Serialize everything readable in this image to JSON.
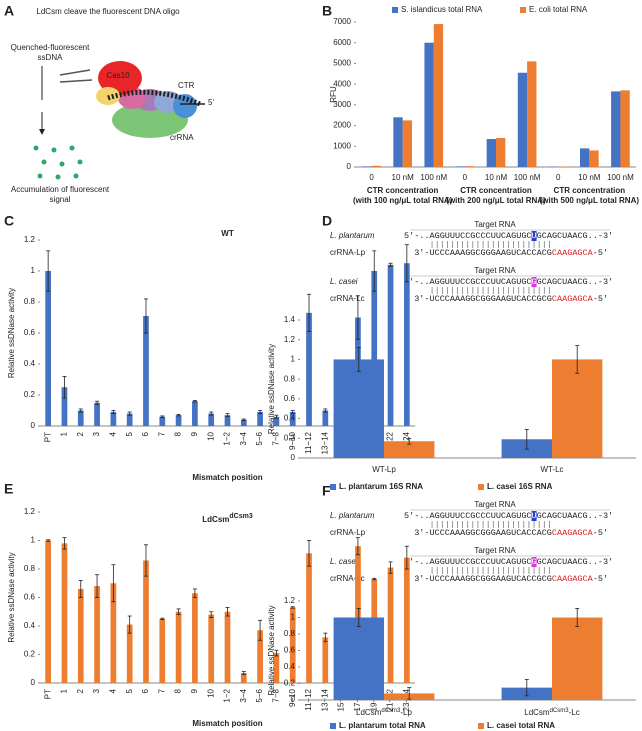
{
  "panel_labels": [
    "A",
    "B",
    "C",
    "D",
    "E",
    "F"
  ],
  "diagram_a": {
    "title": "LdCsm cleave the fluorescent DNA oligo",
    "probe": [
      "Quenched-fluorescent",
      "ssDNA"
    ],
    "cas10": "Cas10",
    "ctr": "CTR",
    "end": "5'",
    "crrna": "crRNA",
    "signal": [
      "Accumulation of fluorescent",
      "signal"
    ]
  },
  "sequences_d": [
    {
      "header": "Target RNA",
      "target_name": "L. plantarum",
      "target": [
        "5'-..AGGUUUCCGCCCUUCAGUGC",
        "U",
        "GCAGCUAACG..-3'"
      ],
      "cr_name": "crRNA-Lp",
      "cr": [
        "3'-UCCCAAAGGCGGGAAGUCACCACG",
        "CAAGAGCA",
        "-5'"
      ]
    },
    {
      "header": "Target RNA",
      "target_name": "L. casei",
      "target": [
        "5'-..AGGUUUCCGCCCUUCAGUGC",
        "G",
        "GCAGCUAACG..-3'"
      ],
      "cr_name": "crRNA-Lc",
      "cr": [
        "3'-UCCCAAAGGCGGGAAGUCACCGCG",
        "CAAGAGCA",
        "-5'"
      ]
    }
  ],
  "sequences_f": [
    {
      "header": "Target RNA",
      "target_name": "L. plantarum",
      "target": [
        "5'-..AGGUUUCCGCCCUUCAGUGC",
        "U",
        "GCAGCUAACG..-3'"
      ],
      "cr_name": "crRNA-Lp",
      "cr": [
        "3'-UCCCAAAGGCGGGAAGUCACCACG",
        "CAAGAGCA",
        "-5'"
      ]
    },
    {
      "header": "Target RNA",
      "target_name": "L. casei",
      "target": [
        "5'-..AGGUUUCCGCCCUUCAGUGC",
        "G",
        "GCAGCUAACG..-3'"
      ],
      "cr_name": "crRNA-Lc",
      "cr": [
        "3'-UCCCAAAGGCGGGAAGUCACCGCG",
        "CAAGAGCA",
        "-5'"
      ]
    }
  ],
  "chart_data": [
    {
      "type": "bar",
      "ylabel": "RFU",
      "categories": [
        "0",
        "10 nM",
        "100 nM",
        "0",
        "10 nM",
        "100 nM",
        "0",
        "10 nM",
        "100 nM"
      ],
      "group_labels": [
        [
          "CTR concentration",
          "(with 100 ng/μL total RNA)"
        ],
        [
          "CTR concentration",
          "(with 200 ng/μL total RNA)"
        ],
        [
          "CTR concentration",
          "(with 500 ng/μL total RNA)"
        ]
      ],
      "series": [
        {
          "name": "S. islandicus total RNA",
          "color": "#4472c4",
          "values": [
            30,
            2400,
            6000,
            30,
            1350,
            4550,
            20,
            900,
            3650
          ]
        },
        {
          "name": "E. coli total RNA",
          "color": "#ed7d31",
          "values": [
            60,
            2250,
            6900,
            40,
            1400,
            5100,
            15,
            800,
            3700
          ]
        }
      ],
      "ylim": [
        0,
        7000
      ],
      "yticks": [
        0,
        1000,
        2000,
        3000,
        4000,
        5000,
        6000,
        7000
      ]
    },
    {
      "type": "bar",
      "title": "WT",
      "xlabel": "Mismatch position",
      "ylabel": "Relative ssDNase activity",
      "color": "#4472c4",
      "categories": [
        "PT",
        "1",
        "2",
        "3",
        "4",
        "5",
        "6",
        "7",
        "8",
        "9",
        "10",
        "1−2",
        "3−4",
        "5−6",
        "7−8",
        "9−10",
        "11−12",
        "13−14",
        "15−16",
        "17−18",
        "19−20",
        "21−22",
        "23−24"
      ],
      "values": [
        1.0,
        0.25,
        0.1,
        0.15,
        0.09,
        0.08,
        0.71,
        0.06,
        0.07,
        0.16,
        0.08,
        0.07,
        0.04,
        0.09,
        0.06,
        0.09,
        0.73,
        0.1,
        0.09,
        0.7,
        1.0,
        1.04,
        1.05
      ],
      "errors": [
        0.13,
        0.07,
        0.01,
        0.01,
        0.01,
        0.01,
        0.11,
        0.005,
        0.005,
        0.005,
        0.01,
        0.01,
        0.005,
        0.01,
        0.01,
        0.01,
        0.12,
        0.01,
        0.01,
        0.14,
        0.13,
        0.01,
        0.12
      ],
      "ylim": [
        0,
        1.2
      ],
      "yticks": [
        0,
        0.2,
        0.4,
        0.6,
        0.8,
        1,
        1.2
      ]
    },
    {
      "type": "bar",
      "ylabel": "Relative ssDNase activity",
      "categories": [
        "WT-Lp",
        "WT-Lc"
      ],
      "series": [
        {
          "name": "L. plantarum 16S RNA",
          "color": "#4472c4",
          "values": [
            1.0,
            0.19
          ],
          "errors": [
            0.12,
            0.1
          ]
        },
        {
          "name": "L. casei 16S RNA",
          "color": "#ed7d31",
          "values": [
            0.17,
            1.0
          ],
          "errors": [
            0.03,
            0.14
          ]
        }
      ],
      "ylim": [
        0,
        1.4
      ],
      "yticks": [
        0,
        0.2,
        0.4,
        0.6,
        0.8,
        1,
        1.2,
        1.4
      ]
    },
    {
      "type": "bar",
      "title": "LdCsm",
      "title_sup": "dCsm3",
      "xlabel": "Mismatch position",
      "ylabel": "Relative ssDNase activity",
      "color": "#ed7d31",
      "categories": [
        "PT",
        "1",
        "2",
        "3",
        "4",
        "5",
        "6",
        "7",
        "8",
        "9",
        "10",
        "1−2",
        "3−4",
        "5−6",
        "7−8",
        "9−10",
        "11−12",
        "13−14",
        "15−16",
        "17−18",
        "19−20",
        "21−22",
        "23−24"
      ],
      "values": [
        1.0,
        0.98,
        0.66,
        0.68,
        0.7,
        0.41,
        0.86,
        0.45,
        0.5,
        0.63,
        0.48,
        0.5,
        0.07,
        0.37,
        0.21,
        0.53,
        0.91,
        0.32,
        0.3,
        0.96,
        0.73,
        0.81,
        0.88
      ],
      "errors": [
        0.005,
        0.04,
        0.06,
        0.08,
        0.13,
        0.06,
        0.11,
        0.005,
        0.02,
        0.03,
        0.02,
        0.03,
        0.01,
        0.07,
        0.02,
        0.005,
        0.09,
        0.03,
        0.04,
        0.06,
        0.005,
        0.04,
        0.08
      ],
      "ylim": [
        0,
        1.2
      ],
      "yticks": [
        0,
        0.2,
        0.4,
        0.6,
        0.8,
        1,
        1.2
      ]
    },
    {
      "type": "bar",
      "ylabel": "Relative ssDNase activity",
      "categories": [
        {
          "base": "LdCsm",
          "sup": "dCsm3",
          "suffix": "-Lp"
        },
        {
          "base": "LdCsm",
          "sup": "dCsm3",
          "suffix": "-Lc"
        }
      ],
      "series": [
        {
          "name": "L. plantarum total RNA",
          "color": "#4472c4",
          "values": [
            1.0,
            0.15
          ],
          "errors": [
            0.11,
            0.1
          ]
        },
        {
          "name": "L. casei total RNA",
          "color": "#ed7d31",
          "values": [
            0.08,
            1.0
          ],
          "errors": [
            0.07,
            0.11
          ]
        }
      ],
      "ylim": [
        0,
        1.2
      ],
      "yticks": [
        0,
        0.2,
        0.4,
        0.6,
        0.8,
        1,
        1.2
      ]
    }
  ]
}
